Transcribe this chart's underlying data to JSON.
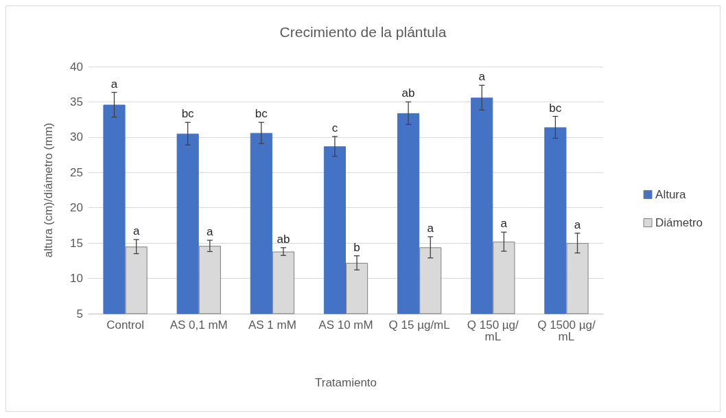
{
  "chart_data": {
    "type": "bar",
    "title": "Crecimiento de la plántula",
    "xlabel": "Tratamiento",
    "ylabel": "altura (cm)/diámetro (mm)",
    "categories": [
      "Control",
      "AS 0,1 mM",
      "AS 1 mM",
      "AS 10 mM",
      "Q 15 µg/mL",
      "Q 150 µg/mL",
      "Q 1500 µg/mL"
    ],
    "series": [
      {
        "name": "Altura",
        "color": "#4472c4",
        "values": [
          34.6,
          30.5,
          30.6,
          28.7,
          33.4,
          35.6,
          31.4
        ],
        "errors": [
          1.75,
          1.6,
          1.5,
          1.4,
          1.6,
          1.75,
          1.55
        ],
        "value_labels": [
          "a",
          "bc",
          "bc",
          "c",
          "ab",
          "a",
          "bc"
        ]
      },
      {
        "name": "Diámetro",
        "color": "#d9d9d9",
        "values": [
          14.5,
          14.6,
          13.8,
          12.2,
          14.4,
          15.2,
          15.0
        ],
        "errors": [
          1.0,
          0.8,
          0.55,
          1.0,
          1.5,
          1.35,
          1.4
        ],
        "value_labels": [
          "a",
          "a",
          "ab",
          "b",
          "a",
          "a",
          "a"
        ]
      }
    ],
    "ylim": [
      5,
      40
    ],
    "yticks": [
      5,
      10,
      15,
      20,
      25,
      30,
      35,
      40
    ],
    "grid": "y",
    "legend": "right"
  }
}
